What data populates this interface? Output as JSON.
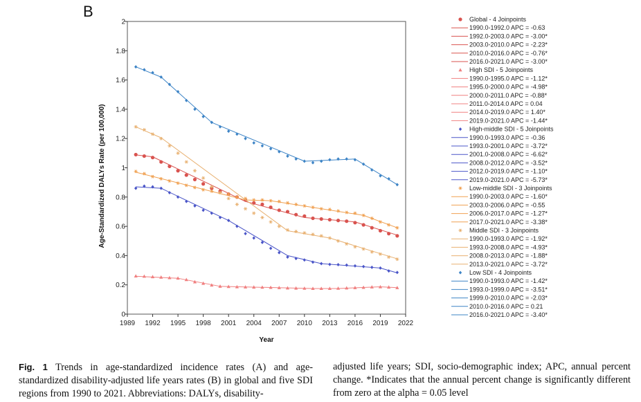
{
  "panel_label": "B",
  "caption": {
    "fig_label": "Fig. 1",
    "col1": "Trends in age-standardized incidence rates (A) and age-standardized disability-adjusted life years rates (B) in global and five SDI regions from 1990 to 2021. Abbreviations: DALYs, disability-",
    "col2": "adjusted life years; SDI, socio-demographic index; APC, annual percent change. *Indicates that the annual percent change is significantly different from zero at the alpha = 0.05 level"
  },
  "chart_data": {
    "type": "line",
    "xlabel": "Year",
    "ylabel": "Age-Standardized DALYs Rate (per 100,000)",
    "xlim": [
      1989,
      2022
    ],
    "ylim": [
      0,
      2
    ],
    "xticks": [
      1989,
      1992,
      1995,
      1998,
      2001,
      2004,
      2007,
      2010,
      2013,
      2016,
      2019,
      2022
    ],
    "yticks": [
      0,
      0.2,
      0.4,
      0.6,
      0.8,
      1,
      1.2,
      1.4,
      1.6,
      1.8,
      2
    ],
    "grid": false,
    "legend_position": "right",
    "x": [
      1990,
      1991,
      1992,
      1993,
      1994,
      1995,
      1996,
      1997,
      1998,
      1999,
      2000,
      2001,
      2002,
      2003,
      2004,
      2005,
      2006,
      2007,
      2008,
      2009,
      2010,
      2011,
      2012,
      2013,
      2014,
      2015,
      2016,
      2017,
      2018,
      2019,
      2020,
      2021
    ],
    "series": [
      {
        "name": "Global - 4 Joinpoints",
        "marker": "circle",
        "color": "#d9534f",
        "observed": [
          1.09,
          1.08,
          1.07,
          1.04,
          1.01,
          0.98,
          0.95,
          0.92,
          0.89,
          0.86,
          0.84,
          0.82,
          0.8,
          0.78,
          0.76,
          0.75,
          0.73,
          0.71,
          0.7,
          0.68,
          0.67,
          0.655,
          0.65,
          0.645,
          0.64,
          0.635,
          0.625,
          0.61,
          0.59,
          0.57,
          0.55,
          0.535
        ],
        "segments": [
          {
            "label": "1990.0-1992.0 APC = -0.63",
            "from": 1990,
            "to": 1992,
            "y0": 1.088,
            "y1": 1.075
          },
          {
            "label": "1992.0-2003.0 APC = -3.00*",
            "from": 1992,
            "to": 2003,
            "y0": 1.075,
            "y1": 0.77
          },
          {
            "label": "2003.0-2010.0 APC = -2.23*",
            "from": 2003,
            "to": 2010,
            "y0": 0.77,
            "y1": 0.66
          },
          {
            "label": "2010.0-2016.0 APC = -0.76*",
            "from": 2010,
            "to": 2016,
            "y0": 0.66,
            "y1": 0.63
          },
          {
            "label": "2016.0-2021.0 APC = -3.00*",
            "from": 2016,
            "to": 2021,
            "y0": 0.63,
            "y1": 0.54
          }
        ]
      },
      {
        "name": "High SDI - 5 Joinpoints",
        "marker": "triangle",
        "color": "#f08080",
        "observed": [
          0.26,
          0.258,
          0.255,
          0.252,
          0.248,
          0.245,
          0.235,
          0.22,
          0.21,
          0.198,
          0.19,
          0.188,
          0.186,
          0.185,
          0.184,
          0.183,
          0.182,
          0.18,
          0.178,
          0.177,
          0.176,
          0.175,
          0.175,
          0.175,
          0.176,
          0.178,
          0.18,
          0.182,
          0.185,
          0.186,
          0.184,
          0.18
        ],
        "segments": [
          {
            "label": "1990.0-1995.0 APC = -1.12*",
            "from": 1990,
            "to": 1995,
            "y0": 0.259,
            "y1": 0.245
          },
          {
            "label": "1995.0-2000.0 APC = -4.98*",
            "from": 1995,
            "to": 2000,
            "y0": 0.245,
            "y1": 0.19
          },
          {
            "label": "2000.0-2011.0 APC = -0.88*",
            "from": 2000,
            "to": 2011,
            "y0": 0.19,
            "y1": 0.175
          },
          {
            "label": "2011.0-2014.0 APC = 0.04",
            "from": 2011,
            "to": 2014,
            "y0": 0.175,
            "y1": 0.175
          },
          {
            "label": "2014.0-2019.0 APC = 1.40*",
            "from": 2014,
            "to": 2019,
            "y0": 0.175,
            "y1": 0.187
          },
          {
            "label": "2019.0-2021.0 APC = -1.44*",
            "from": 2019,
            "to": 2021,
            "y0": 0.187,
            "y1": 0.181
          }
        ]
      },
      {
        "name": "High-middle SDI - 5 Joinpoints",
        "marker": "diamond",
        "color": "#4a55c8",
        "observed": [
          0.86,
          0.875,
          0.87,
          0.86,
          0.83,
          0.8,
          0.77,
          0.74,
          0.71,
          0.69,
          0.66,
          0.64,
          0.6,
          0.55,
          0.52,
          0.49,
          0.45,
          0.42,
          0.39,
          0.38,
          0.37,
          0.355,
          0.345,
          0.34,
          0.338,
          0.335,
          0.33,
          0.325,
          0.32,
          0.315,
          0.295,
          0.285
        ],
        "segments": [
          {
            "label": "1990.0-1993.0 APC = -0.36",
            "from": 1990,
            "to": 1993,
            "y0": 0.87,
            "y1": 0.86
          },
          {
            "label": "1993.0-2001.0 APC = -3.72*",
            "from": 1993,
            "to": 2001,
            "y0": 0.86,
            "y1": 0.64
          },
          {
            "label": "2001.0-2008.0 APC = -6.62*",
            "from": 2001,
            "to": 2008,
            "y0": 0.64,
            "y1": 0.4
          },
          {
            "label": "2008.0-2012.0 APC = -3.52*",
            "from": 2008,
            "to": 2012,
            "y0": 0.4,
            "y1": 0.345
          },
          {
            "label": "2012.0-2019.0 APC = -1.10*",
            "from": 2012,
            "to": 2019,
            "y0": 0.345,
            "y1": 0.315
          },
          {
            "label": "2019.0-2021.0 APC = -5.73*",
            "from": 2019,
            "to": 2021,
            "y0": 0.315,
            "y1": 0.282
          }
        ]
      },
      {
        "name": "Low-middle SDI - 3 Joinpoints",
        "marker": "star",
        "color": "#f0a050",
        "observed": [
          0.975,
          0.96,
          0.94,
          0.925,
          0.91,
          0.895,
          0.88,
          0.865,
          0.85,
          0.84,
          0.83,
          0.82,
          0.8,
          0.79,
          0.78,
          0.78,
          0.775,
          0.77,
          0.76,
          0.75,
          0.74,
          0.73,
          0.72,
          0.715,
          0.705,
          0.695,
          0.69,
          0.675,
          0.655,
          0.63,
          0.61,
          0.59
        ],
        "segments": [
          {
            "label": "1990.0-2003.0 APC = -1.60*",
            "from": 1990,
            "to": 2003,
            "y0": 0.97,
            "y1": 0.78
          },
          {
            "label": "2003.0-2006.0 APC = -0.55",
            "from": 2003,
            "to": 2006,
            "y0": 0.78,
            "y1": 0.775
          },
          {
            "label": "2006.0-2017.0 APC = -1.27*",
            "from": 2006,
            "to": 2017,
            "y0": 0.775,
            "y1": 0.675
          },
          {
            "label": "2017.0-2021.0 APC = -3.38*",
            "from": 2017,
            "to": 2021,
            "y0": 0.675,
            "y1": 0.59
          }
        ]
      },
      {
        "name": "Middle SDI - 3 Joinpoints",
        "marker": "star",
        "color": "#e8b070",
        "observed": [
          1.28,
          1.26,
          1.23,
          1.2,
          1.15,
          1.1,
          1.04,
          0.98,
          0.93,
          0.87,
          0.83,
          0.79,
          0.75,
          0.72,
          0.69,
          0.66,
          0.63,
          0.6,
          0.575,
          0.565,
          0.555,
          0.545,
          0.535,
          0.52,
          0.5,
          0.48,
          0.46,
          0.445,
          0.425,
          0.41,
          0.39,
          0.375
        ],
        "segments": [
          {
            "label": "1990.0-1993.0 APC = -1.92*",
            "from": 1990,
            "to": 1993,
            "y0": 1.28,
            "y1": 1.205
          },
          {
            "label": "1993.0-2008.0 APC = -4.93*",
            "from": 1993,
            "to": 2008,
            "y0": 1.205,
            "y1": 0.57
          },
          {
            "label": "2008.0-2013.0 APC = -1.88*",
            "from": 2008,
            "to": 2013,
            "y0": 0.57,
            "y1": 0.52
          },
          {
            "label": "2013.0-2021.0 APC = -3.72*",
            "from": 2013,
            "to": 2021,
            "y0": 0.52,
            "y1": 0.378
          }
        ]
      },
      {
        "name": "Low SDI - 4 Joinpoints",
        "marker": "diamond",
        "color": "#3d84c6",
        "observed": [
          1.69,
          1.67,
          1.65,
          1.62,
          1.57,
          1.52,
          1.46,
          1.4,
          1.35,
          1.31,
          1.28,
          1.25,
          1.23,
          1.2,
          1.17,
          1.15,
          1.13,
          1.11,
          1.08,
          1.06,
          1.045,
          1.035,
          1.045,
          1.055,
          1.06,
          1.06,
          1.055,
          1.025,
          0.985,
          0.945,
          0.925,
          0.885
        ],
        "segments": [
          {
            "label": "1990.0-1993.0 APC = -1.42*",
            "from": 1990,
            "to": 1993,
            "y0": 1.69,
            "y1": 1.62
          },
          {
            "label": "1993.0-1999.0 APC = -3.51*",
            "from": 1993,
            "to": 1999,
            "y0": 1.62,
            "y1": 1.31
          },
          {
            "label": "1999.0-2010.0 APC = -2.03*",
            "from": 1999,
            "to": 2010,
            "y0": 1.31,
            "y1": 1.045
          },
          {
            "label": "2010.0-2016.0 APC = 0.21",
            "from": 2010,
            "to": 2016,
            "y0": 1.045,
            "y1": 1.06
          },
          {
            "label": "2016.0-2021.0 APC = -3.40*",
            "from": 2016,
            "to": 2021,
            "y0": 1.06,
            "y1": 0.885
          }
        ]
      }
    ]
  }
}
